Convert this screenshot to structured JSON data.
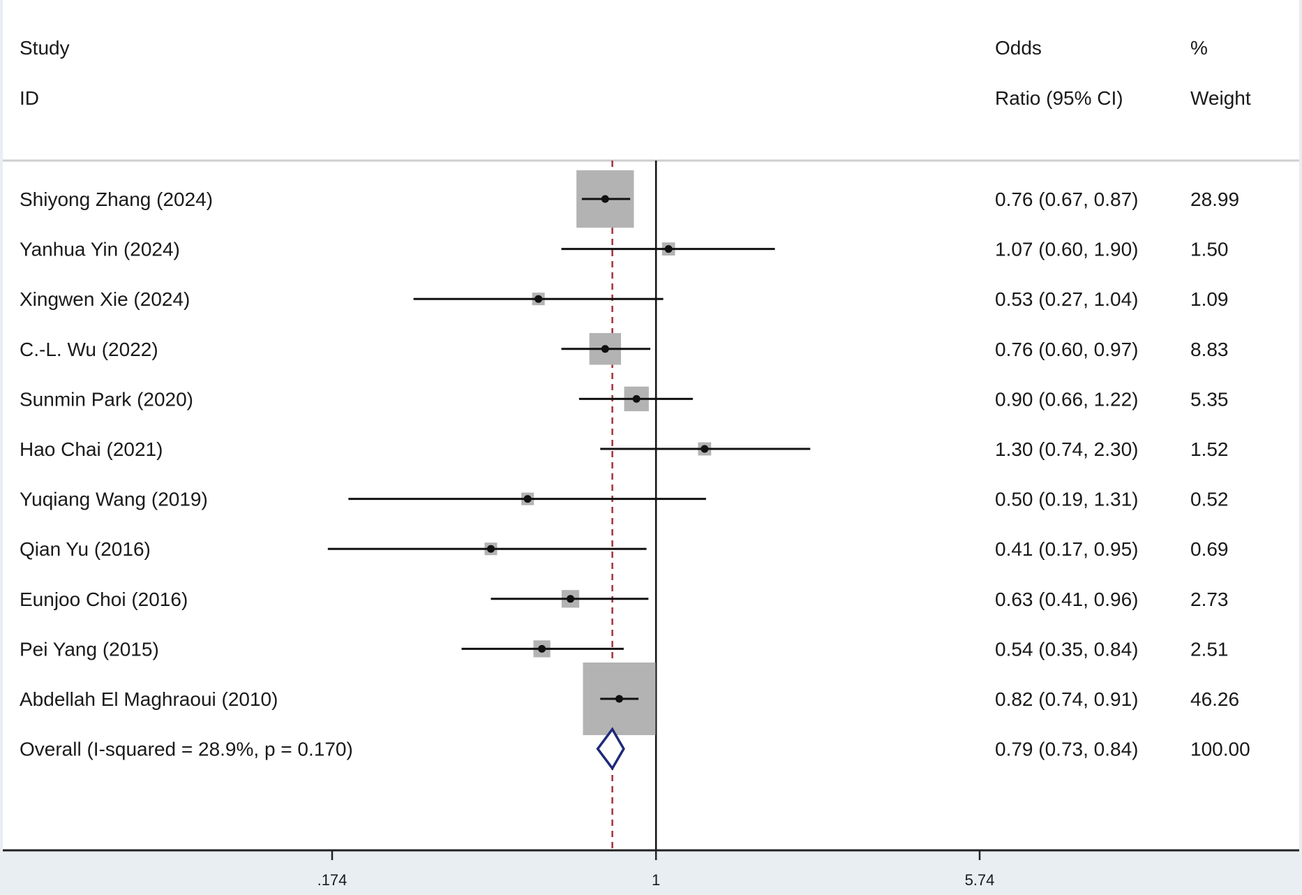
{
  "header": {
    "col1_line1": "Study",
    "col1_line2": "ID",
    "col2_line1": "Odds",
    "col2_line2": "Ratio (95% CI)",
    "col3_line1": "%",
    "col3_line2": "Weight"
  },
  "chart_data": {
    "type": "forest",
    "x_scale": "log",
    "x_ticks": [
      0.174,
      1,
      5.74
    ],
    "x_tick_labels": [
      ".174",
      "1",
      "5.74"
    ],
    "x_range": [
      0.174,
      5.74
    ],
    "reference_line": 1,
    "pooled_line": 0.79,
    "studies": [
      {
        "label": "Shiyong Zhang (2024)",
        "or": 0.76,
        "lo": 0.67,
        "hi": 0.87,
        "weight": 28.99,
        "ci_text": "0.76 (0.67, 0.87)",
        "weight_text": "28.99"
      },
      {
        "label": "Yanhua Yin (2024)",
        "or": 1.07,
        "lo": 0.6,
        "hi": 1.9,
        "weight": 1.5,
        "ci_text": "1.07 (0.60, 1.90)",
        "weight_text": "1.50"
      },
      {
        "label": "Xingwen Xie (2024)",
        "or": 0.53,
        "lo": 0.27,
        "hi": 1.04,
        "weight": 1.09,
        "ci_text": "0.53 (0.27, 1.04)",
        "weight_text": "1.09"
      },
      {
        "label": "C.-L. Wu (2022)",
        "or": 0.76,
        "lo": 0.6,
        "hi": 0.97,
        "weight": 8.83,
        "ci_text": "0.76 (0.60, 0.97)",
        "weight_text": "8.83"
      },
      {
        "label": "Sunmin Park (2020)",
        "or": 0.9,
        "lo": 0.66,
        "hi": 1.22,
        "weight": 5.35,
        "ci_text": "0.90 (0.66, 1.22)",
        "weight_text": "5.35"
      },
      {
        "label": "Hao Chai (2021)",
        "or": 1.3,
        "lo": 0.74,
        "hi": 2.3,
        "weight": 1.52,
        "ci_text": "1.30 (0.74, 2.30)",
        "weight_text": "1.52"
      },
      {
        "label": "Yuqiang Wang (2019)",
        "or": 0.5,
        "lo": 0.19,
        "hi": 1.31,
        "weight": 0.52,
        "ci_text": "0.50 (0.19, 1.31)",
        "weight_text": "0.52"
      },
      {
        "label": "Qian Yu (2016)",
        "or": 0.41,
        "lo": 0.17,
        "hi": 0.95,
        "weight": 0.69,
        "ci_text": "0.41 (0.17, 0.95)",
        "weight_text": "0.69"
      },
      {
        "label": "Eunjoo Choi (2016)",
        "or": 0.63,
        "lo": 0.41,
        "hi": 0.96,
        "weight": 2.73,
        "ci_text": "0.63 (0.41, 0.96)",
        "weight_text": "2.73"
      },
      {
        "label": "Pei Yang (2015)",
        "or": 0.54,
        "lo": 0.35,
        "hi": 0.84,
        "weight": 2.51,
        "ci_text": "0.54 (0.35, 0.84)",
        "weight_text": "2.51"
      },
      {
        "label": "Abdellah El Maghraoui (2010)",
        "or": 0.82,
        "lo": 0.74,
        "hi": 0.91,
        "weight": 46.26,
        "ci_text": "0.82 (0.74, 0.91)",
        "weight_text": "46.26"
      }
    ],
    "overall": {
      "label": "Overall  (I-squared = 28.9%, p = 0.170)",
      "or": 0.79,
      "lo": 0.73,
      "hi": 0.84,
      "ci_text": "0.79 (0.73, 0.84)",
      "weight_text": "100.00"
    }
  },
  "colors": {
    "page_background": "#e9eef2",
    "panel_background": "#ffffff",
    "weight_box": "#b3b3b3",
    "ci_line": "#111111",
    "pooled_line": "#a0323c",
    "diamond": "#1f2a7a"
  }
}
